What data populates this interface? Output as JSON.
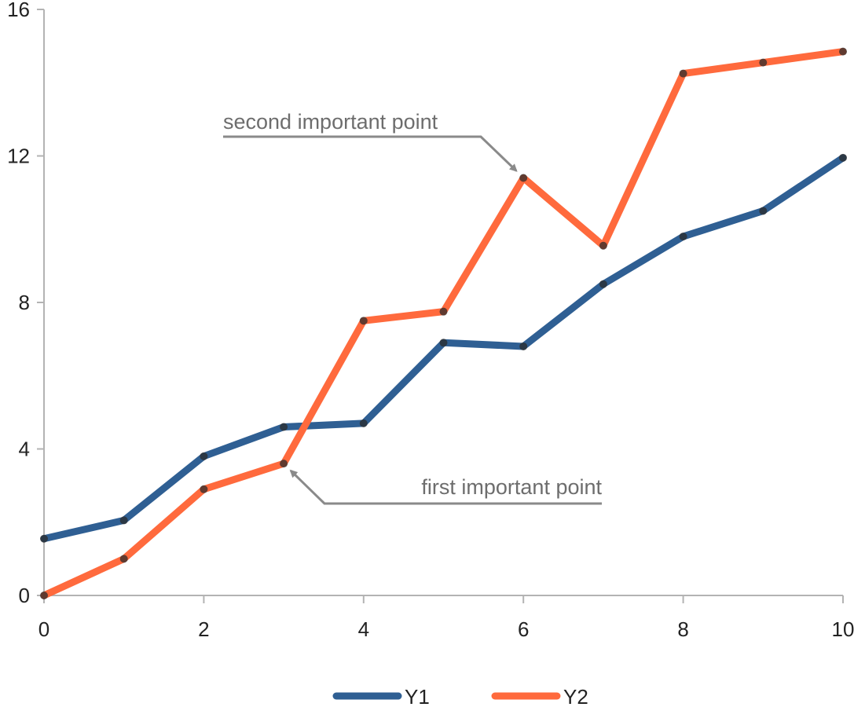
{
  "chart_data": {
    "type": "line",
    "title": "",
    "xlabel": "",
    "ylabel": "",
    "xlim": [
      0,
      10
    ],
    "ylim": [
      0,
      16
    ],
    "x_ticks": [
      0,
      2,
      4,
      6,
      8,
      10
    ],
    "y_ticks": [
      0,
      4,
      8,
      12,
      16
    ],
    "x_tick_labels": [
      "0",
      "2",
      "4",
      "6",
      "8",
      "10"
    ],
    "y_tick_labels": [
      "0",
      "4",
      "8",
      "12",
      "16"
    ],
    "grid": false,
    "legend_position": "bottom",
    "x": [
      0,
      1,
      2,
      3,
      4,
      5,
      6,
      7,
      8,
      9,
      10
    ],
    "series": [
      {
        "name": "Y1",
        "color": "#2f5f93",
        "values": [
          1.55,
          2.05,
          3.8,
          4.6,
          4.7,
          6.9,
          6.8,
          8.5,
          9.8,
          10.5,
          11.95
        ]
      },
      {
        "name": "Y2",
        "color": "#ff6a3d",
        "values": [
          0.0,
          1.0,
          2.9,
          3.6,
          7.5,
          7.75,
          11.4,
          9.55,
          14.25,
          14.55,
          14.85
        ]
      }
    ],
    "annotations": [
      {
        "text": "first important point",
        "series": "Y2",
        "x": 3,
        "y": 3.6
      },
      {
        "text": "second important point",
        "series": "Y2",
        "x": 6,
        "y": 11.4
      }
    ]
  }
}
